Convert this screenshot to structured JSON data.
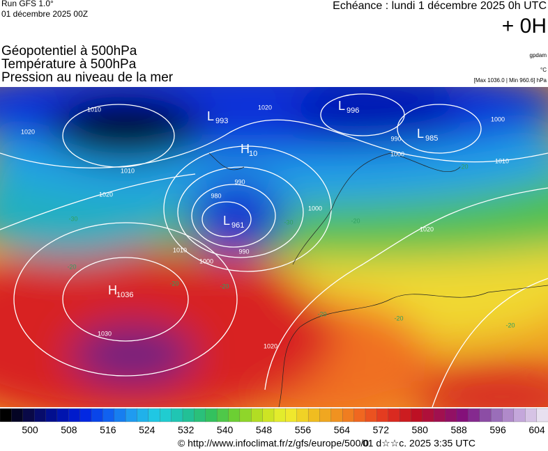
{
  "header": {
    "run": "Run GFS 1.0°",
    "run_date": "01 décembre 2025 00Z",
    "echeance": "Echéance : lundi 1 décembre 2025 0h UTC",
    "lead": "+ 0H",
    "titles": [
      "Géopotentiel à 500hPa",
      "Température à 500hPa",
      "Pression au niveau de la mer"
    ],
    "units": [
      "gpdam",
      "°C",
      "[Max 1036.0 | Min 960.6] hPa"
    ]
  },
  "map": {
    "centers": [
      {
        "symbol": "L",
        "value": "993"
      },
      {
        "symbol": "H",
        "value": "10"
      },
      {
        "symbol": "L",
        "value": "996"
      },
      {
        "symbol": "L",
        "value": "985"
      },
      {
        "symbol": "L",
        "value": "961"
      },
      {
        "symbol": "H",
        "value": "1036"
      }
    ],
    "isobar_labels": [
      "1010",
      "1020",
      "1010",
      "1020",
      "1020",
      "990",
      "980",
      "990",
      "1000",
      "1000",
      "1010",
      "990",
      "1000",
      "1010",
      "1000",
      "1030",
      "1020",
      "1020"
    ],
    "temperature_labels": [
      "-30",
      "-20",
      "-20",
      "-30",
      "-20",
      "-20",
      "-20",
      "-20",
      "-20",
      "-20"
    ]
  },
  "colorbar": {
    "colors": [
      "#000000",
      "#0a0a50",
      "#0010a0",
      "#0020e0",
      "#1060f0",
      "#20a0f0",
      "#20d0e0",
      "#20c0a0",
      "#30c060",
      "#70d030",
      "#c0e020",
      "#f0f030",
      "#f0c020",
      "#f09020",
      "#f06020",
      "#e03020",
      "#c01020",
      "#a01050",
      "#801080",
      "#9060b0",
      "#c0a0d8",
      "#e8e0f0"
    ],
    "ticks": [
      500,
      508,
      516,
      524,
      532,
      540,
      548,
      556,
      564,
      572,
      580,
      588,
      596,
      604
    ]
  },
  "footer": {
    "url": "© http://www.infoclimat.fr/z/gfs/europe/500/0",
    "stamp": "01 d☆☆c. 2025  3:35 UTC"
  }
}
